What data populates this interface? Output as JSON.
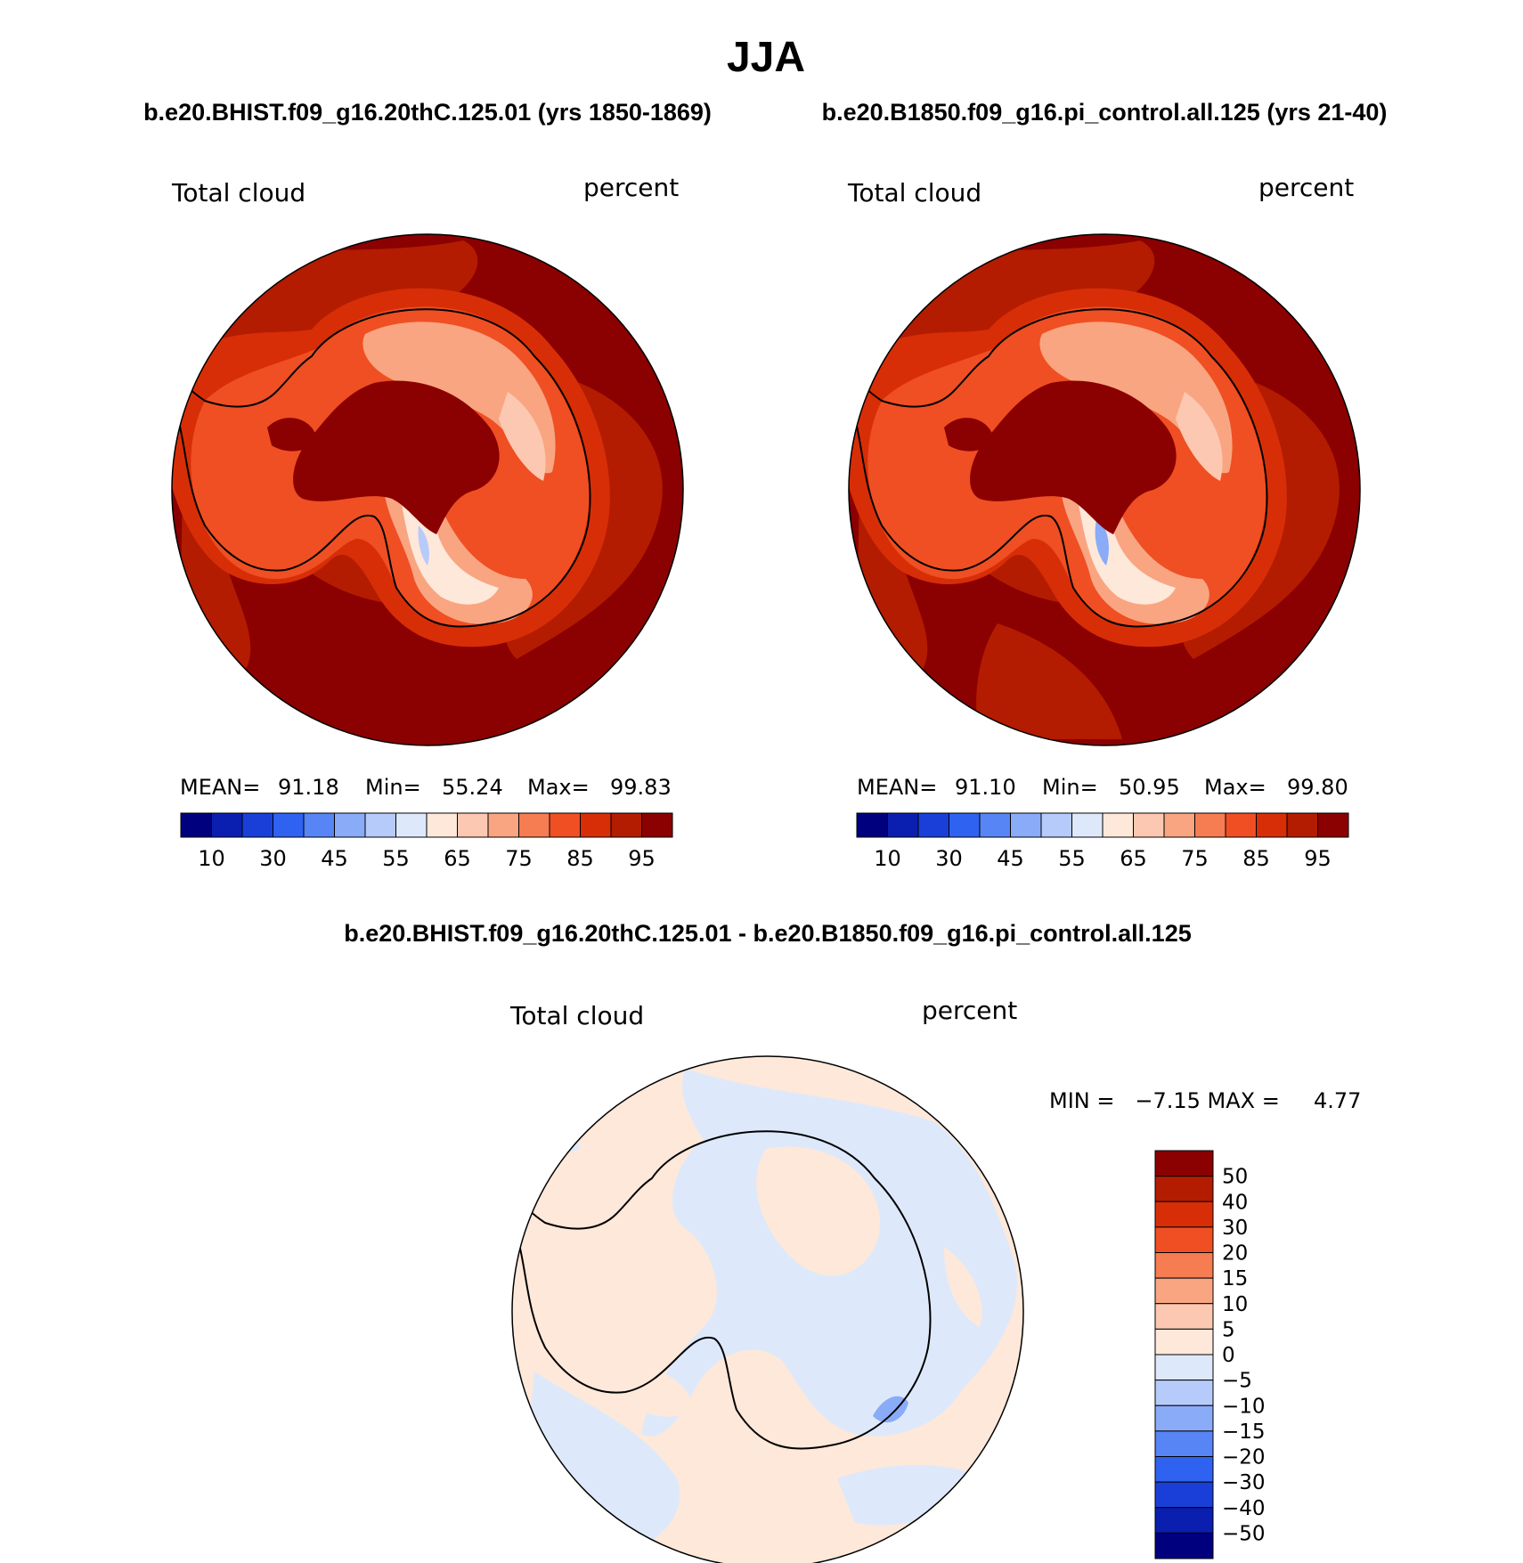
{
  "main_title": "JJA",
  "top_left": {
    "case_title": "b.e20.BHIST.f09_g16.20thC.125.01 (yrs 1850-1869)",
    "variable": "Total cloud",
    "units": "percent",
    "stats": {
      "mean_label": "MEAN=",
      "mean": "91.18",
      "min_label": "Min=",
      "min": "55.24",
      "max_label": "Max=",
      "max": "99.83"
    }
  },
  "top_right": {
    "case_title": "b.e20.B1850.f09_g16.pi_control.all.125 (yrs 21-40)",
    "variable": "Total cloud",
    "units": "percent",
    "stats": {
      "mean_label": "MEAN=",
      "mean": "91.10",
      "min_label": "Min=",
      "min": "50.95",
      "max_label": "Max=",
      "max": "99.80"
    }
  },
  "top_colorbar": {
    "colors": [
      "#00007f",
      "#0a1fb0",
      "#1a3fd9",
      "#2f62f0",
      "#5785f5",
      "#8aabf8",
      "#b7cbfa",
      "#dde9fb",
      "#fde8da",
      "#fcc8b1",
      "#f9a582",
      "#f67c52",
      "#ef4f23",
      "#d82e07",
      "#b31c00",
      "#8b0000"
    ],
    "tick_labels": [
      "10",
      "30",
      "45",
      "55",
      "65",
      "75",
      "85",
      "95"
    ]
  },
  "diff": {
    "case_title": "b.e20.BHIST.f09_g16.20thC.125.01 - b.e20.B1850.f09_g16.pi_control.all.125",
    "variable": "Total cloud",
    "units": "percent",
    "minmax": "MIN =   −7.15 MAX =     4.77"
  },
  "diff_colorbar": {
    "colors": [
      "#8b0000",
      "#b31c00",
      "#d82e07",
      "#ef4f23",
      "#f67c52",
      "#f9a582",
      "#fcc8b1",
      "#fde8da",
      "#dde9fb",
      "#b7cbfa",
      "#8aabf8",
      "#5785f5",
      "#2f62f0",
      "#1a3fd9",
      "#0a1fb0",
      "#00007f"
    ],
    "tick_labels": [
      "50",
      "40",
      "30",
      "20",
      "15",
      "10",
      "5",
      "0",
      "−5",
      "−10",
      "−15",
      "−20",
      "−30",
      "−40",
      "−50"
    ]
  }
}
